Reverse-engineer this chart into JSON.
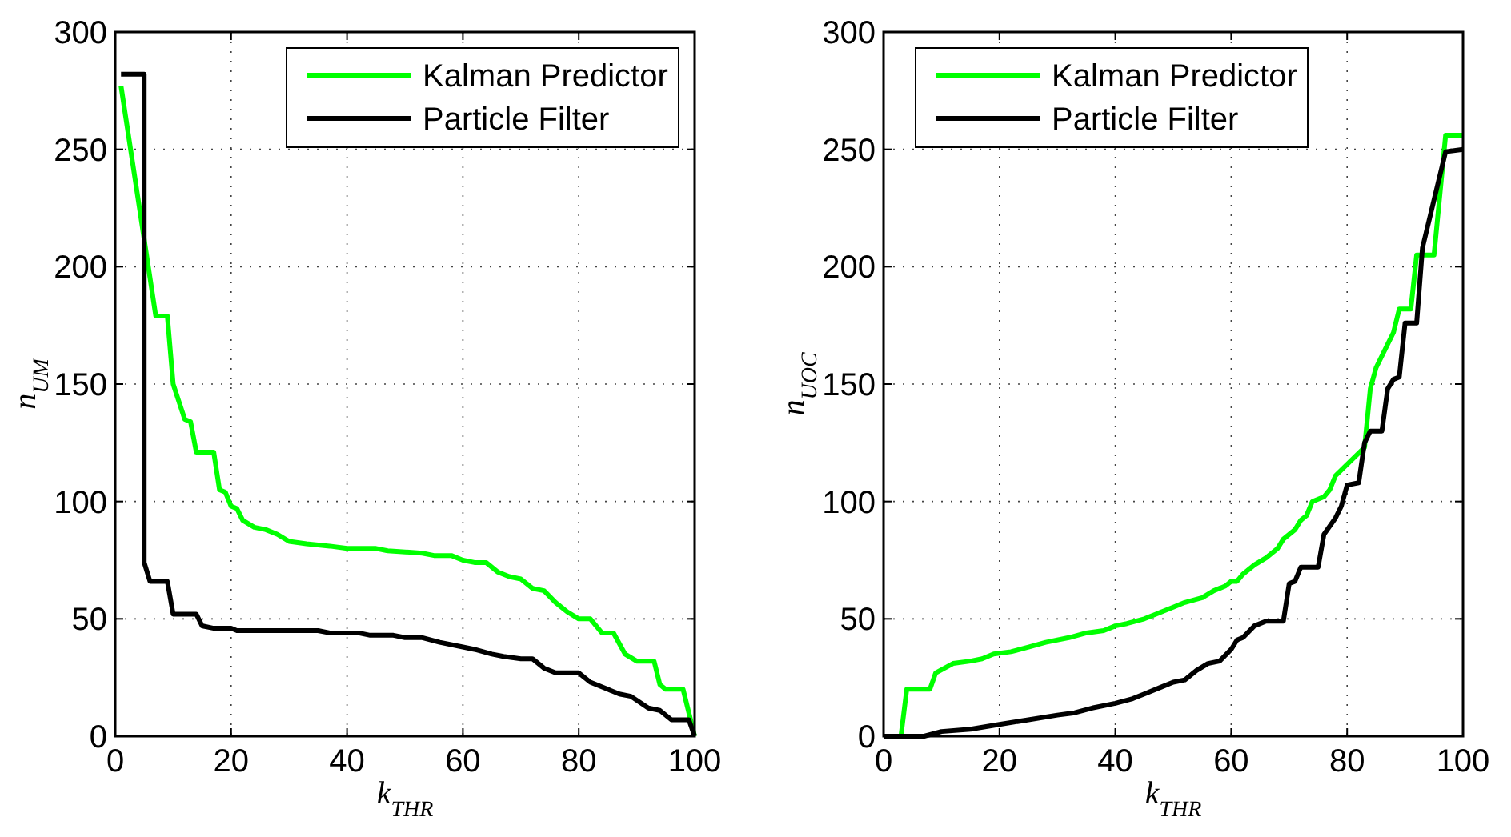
{
  "chart_data": [
    {
      "type": "line",
      "xlabel": "k$_{THR}$",
      "ylabel": "n$_{UM}$",
      "xlim": [
        0,
        100
      ],
      "ylim": [
        0,
        300
      ],
      "xticks": [
        0,
        20,
        40,
        60,
        80,
        100
      ],
      "yticks": [
        0,
        50,
        100,
        150,
        200,
        250,
        300
      ],
      "grid": true,
      "legend": "top right",
      "series": [
        {
          "name": "Kalman Predictor",
          "color": "#00ff00",
          "x": [
            1,
            7,
            9,
            10,
            12,
            13,
            14,
            17,
            18,
            19,
            20,
            21,
            22,
            24,
            26,
            28,
            30,
            33,
            37,
            40,
            45,
            47,
            53,
            55,
            58,
            60,
            62,
            64,
            66,
            68,
            70,
            72,
            74,
            76,
            78,
            80,
            82,
            84,
            86,
            88,
            90,
            93,
            94,
            95,
            98,
            100
          ],
          "values": [
            277,
            179,
            179,
            150,
            135,
            134,
            121,
            121,
            105,
            104,
            98,
            97,
            92,
            89,
            88,
            86,
            83,
            82,
            81,
            80,
            80,
            79,
            78,
            77,
            77,
            75,
            74,
            74,
            70,
            68,
            67,
            63,
            62,
            57,
            53,
            50,
            50,
            44,
            44,
            35,
            32,
            32,
            22,
            20,
            20,
            0
          ]
        },
        {
          "name": "Particle Filter",
          "color": "#000000",
          "x": [
            1,
            4,
            5,
            5,
            6,
            9,
            10,
            14,
            15,
            17,
            20,
            21,
            35,
            37,
            42,
            44,
            48,
            50,
            53,
            56,
            60,
            62,
            65,
            67,
            70,
            72,
            74,
            76,
            80,
            82,
            85,
            87,
            89,
            92,
            94,
            96,
            99,
            100
          ],
          "values": [
            282,
            282,
            282,
            74,
            66,
            66,
            52,
            52,
            47,
            46,
            46,
            45,
            45,
            44,
            44,
            43,
            43,
            42,
            42,
            40,
            38,
            37,
            35,
            34,
            33,
            33,
            29,
            27,
            27,
            23,
            20,
            18,
            17,
            12,
            11,
            7,
            7,
            0
          ]
        }
      ]
    },
    {
      "type": "line",
      "xlabel": "k$_{THR}$",
      "ylabel": "n$_{UOC}$",
      "xlim": [
        0,
        100
      ],
      "ylim": [
        0,
        300
      ],
      "xticks": [
        0,
        20,
        40,
        60,
        80,
        100
      ],
      "yticks": [
        0,
        50,
        100,
        150,
        200,
        250,
        300
      ],
      "grid": true,
      "legend": "top left",
      "series": [
        {
          "name": "Kalman Predictor",
          "color": "#00ff00",
          "x": [
            0,
            3,
            4,
            8,
            9,
            12,
            15,
            17,
            19,
            22,
            25,
            28,
            32,
            35,
            38,
            40,
            42,
            45,
            47,
            50,
            52,
            55,
            57,
            59,
            60,
            61,
            62,
            64,
            66,
            68,
            69,
            71,
            72,
            73,
            74,
            76,
            77,
            78,
            83,
            84,
            85,
            87,
            88,
            89,
            91,
            92,
            95,
            97,
            100
          ],
          "values": [
            0,
            0,
            20,
            20,
            27,
            31,
            32,
            33,
            35,
            36,
            38,
            40,
            42,
            44,
            45,
            47,
            48,
            50,
            52,
            55,
            57,
            59,
            62,
            64,
            66,
            66,
            69,
            73,
            76,
            80,
            84,
            88,
            92,
            94,
            100,
            102,
            105,
            111,
            123,
            148,
            157,
            167,
            172,
            182,
            182,
            205,
            205,
            256,
            256
          ]
        },
        {
          "name": "Particle Filter",
          "color": "#000000",
          "x": [
            0,
            7,
            10,
            15,
            20,
            25,
            30,
            33,
            36,
            40,
            43,
            45,
            48,
            50,
            52,
            54,
            56,
            58,
            60,
            61,
            62,
            64,
            66,
            69,
            70,
            71,
            72,
            75,
            76,
            78,
            79,
            80,
            82,
            83,
            84,
            86,
            87,
            88,
            89,
            90,
            92,
            93,
            97,
            100
          ],
          "values": [
            0,
            0,
            2,
            3,
            5,
            7,
            9,
            10,
            12,
            14,
            16,
            18,
            21,
            23,
            24,
            28,
            31,
            32,
            37,
            41,
            42,
            47,
            49,
            49,
            65,
            66,
            72,
            72,
            86,
            93,
            98,
            107,
            108,
            125,
            130,
            130,
            148,
            152,
            153,
            176,
            176,
            208,
            249,
            250
          ]
        }
      ]
    }
  ]
}
